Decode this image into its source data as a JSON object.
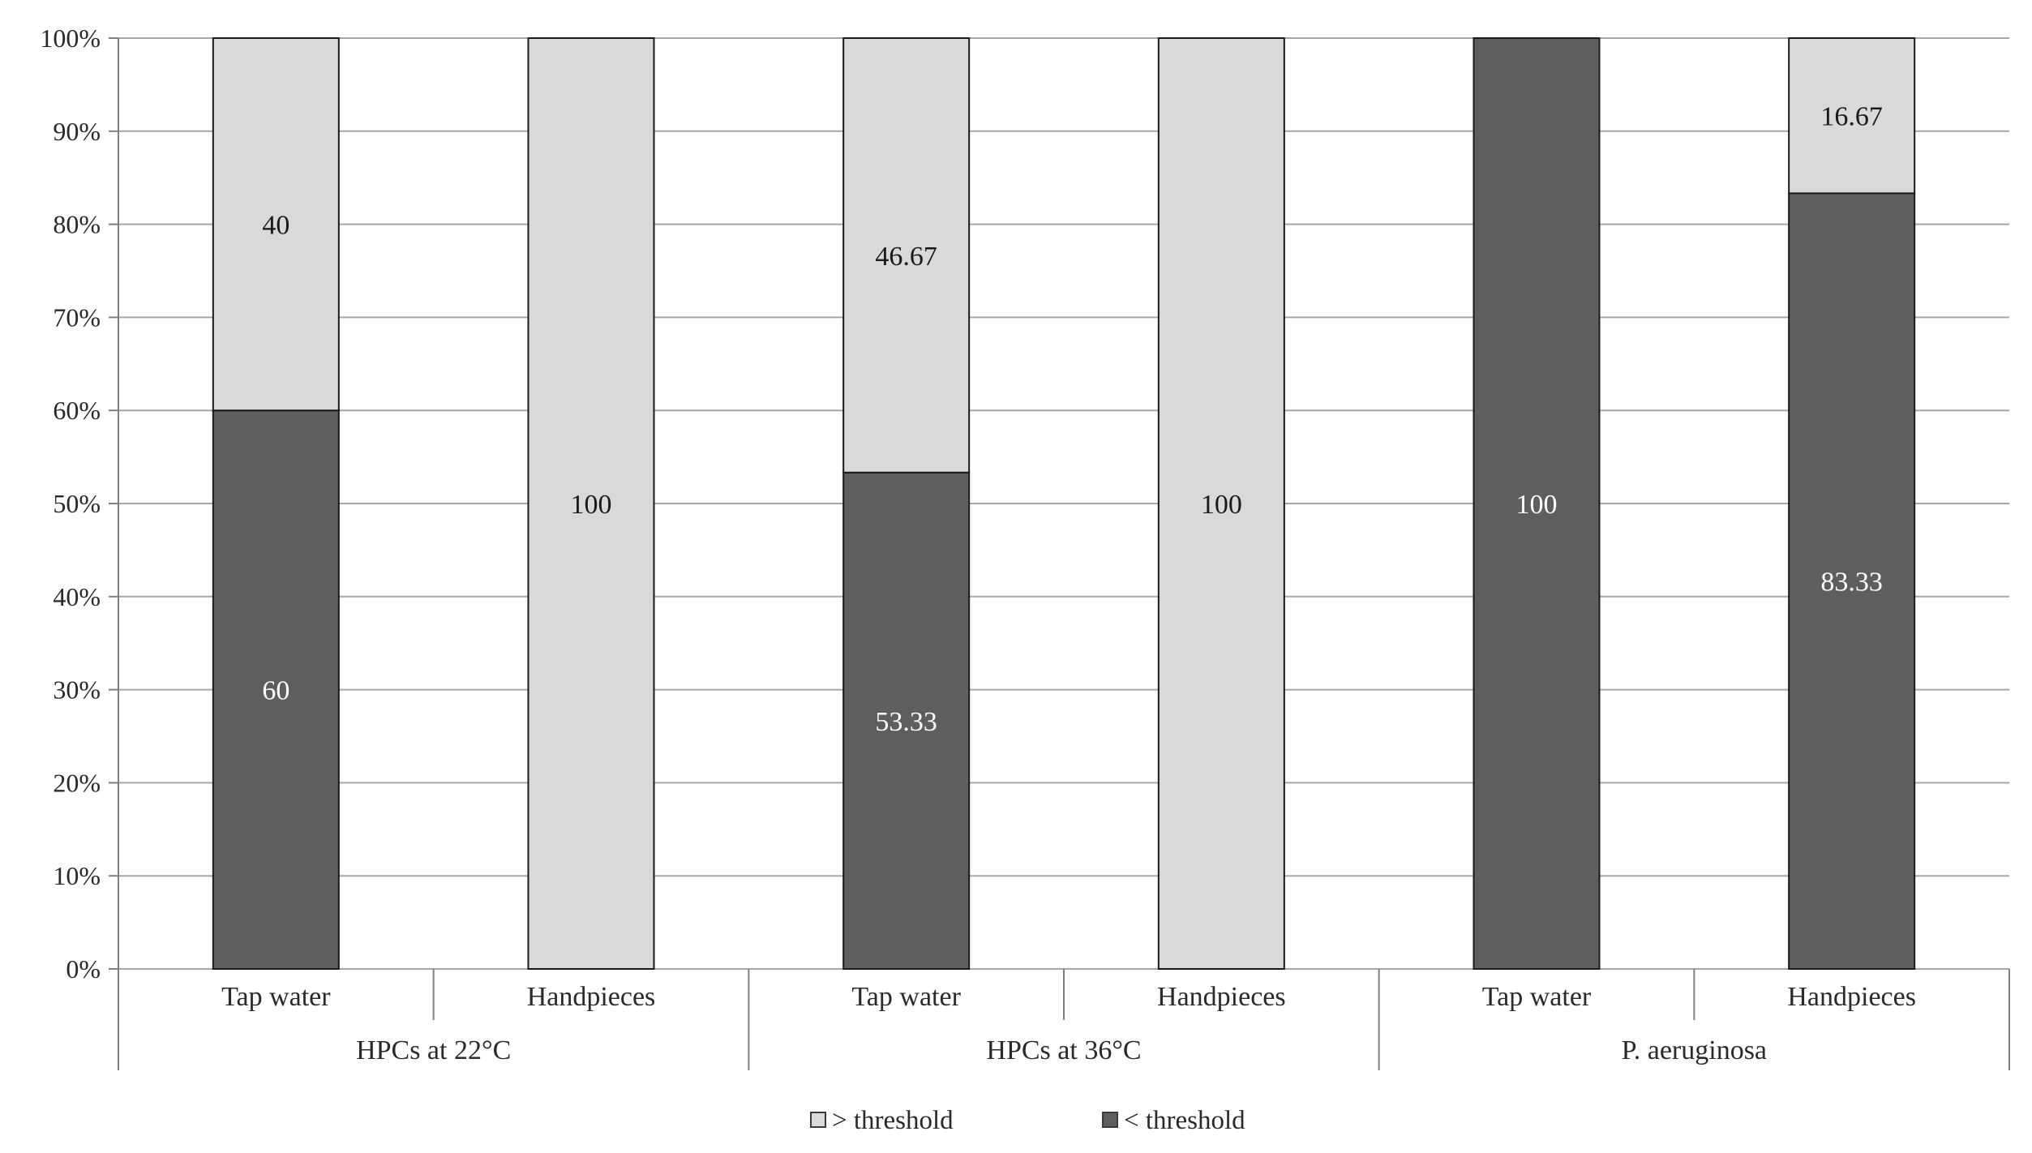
{
  "chart_data": {
    "type": "bar",
    "stacked": true,
    "percent_scale": true,
    "groups": [
      "HPCs at 22°C",
      "HPCs at 36°C",
      "P. aeruginosa"
    ],
    "categories": [
      "Tap water",
      "Handpieces",
      "Tap water",
      "Handpieces",
      "Tap water",
      "Handpieces"
    ],
    "series": [
      {
        "name": "< threshold",
        "color": "#5e5e5e",
        "label_color": "#ffffff",
        "values": [
          60,
          0,
          53.33,
          0,
          100,
          83.33
        ],
        "labels": [
          "60",
          "",
          "53.33",
          "",
          "100",
          "83.33"
        ]
      },
      {
        "name": "> threshold",
        "color": "#d9d9d9",
        "label_color": "#1a1a1a",
        "values": [
          40,
          100,
          46.67,
          100,
          0,
          16.67
        ],
        "labels": [
          "40",
          "100",
          "46.67",
          "100",
          "",
          "16.67"
        ]
      }
    ],
    "legend_order": [
      "> threshold",
      "< threshold"
    ],
    "ylim": [
      0,
      100
    ],
    "y_ticks": [
      "0%",
      "10%",
      "20%",
      "30%",
      "40%",
      "50%",
      "60%",
      "70%",
      "80%",
      "90%",
      "100%"
    ],
    "title": "",
    "xlabel": "",
    "ylabel": "",
    "grid": true,
    "legend_position": "bottom"
  }
}
